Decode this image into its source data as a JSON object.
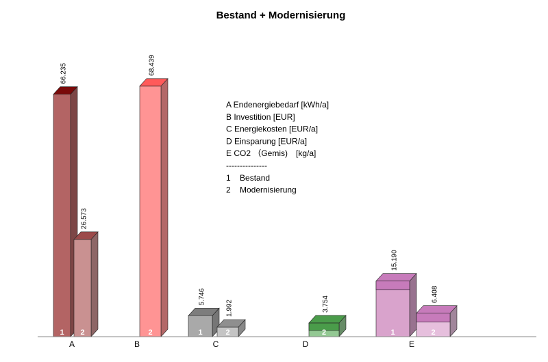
{
  "chart_data": {
    "type": "bar",
    "title": "Bestand + Modernisierung",
    "categories": [
      "A",
      "B",
      "C",
      "D",
      "E"
    ],
    "bars": [
      {
        "category": "A",
        "series": "1",
        "value": 66.235,
        "label": "66.235",
        "index_label": "1",
        "color": "#b36464"
      },
      {
        "category": "A",
        "series": "2",
        "value": 26.573,
        "label": "26.573",
        "index_label": "2",
        "color": "#c99191"
      },
      {
        "category": "B",
        "series": "2",
        "value": 68.439,
        "label": "68.439",
        "index_label": "2",
        "color": "#ff9494"
      },
      {
        "category": "C",
        "series": "1",
        "value": 5.746,
        "label": "5.746",
        "index_label": "1",
        "color": "#a9a9a9"
      },
      {
        "category": "C",
        "series": "2",
        "value": 1.992,
        "label": "1.992",
        "index_label": "2",
        "color": "#c4c4c4"
      },
      {
        "category": "D",
        "series": "2",
        "value": 3.754,
        "label": "3.754",
        "index_label": "2",
        "color": "#93c893"
      },
      {
        "category": "E",
        "series": "1",
        "value": 15.19,
        "label": "15.190",
        "index_label": "1",
        "color": "#d9a3cc"
      },
      {
        "category": "E",
        "series": "2",
        "value": 6.408,
        "label": "6.408",
        "index_label": "2",
        "color": "#e6bfdd"
      }
    ],
    "top_colors": {
      "A1": "#7a0a0a",
      "A2": "#9c4a4a",
      "B2": "#ff5a5a",
      "C1": "#7d7d7d",
      "C2": "#8f8f8f",
      "D2": "#4a9c4a",
      "E1": "#c77bbb",
      "E2": "#c77bbb"
    },
    "legend_lines": [
      "A Endenergiebedarf [kWh/a]",
      "B Investition [EUR]",
      "C Energiekosten [EUR/a]",
      "D Einsparung [EUR/a]",
      "E CO2 （Gemis)　[kg/a]",
      "---------------",
      "1    Bestand",
      "2    Modernisierung"
    ]
  }
}
